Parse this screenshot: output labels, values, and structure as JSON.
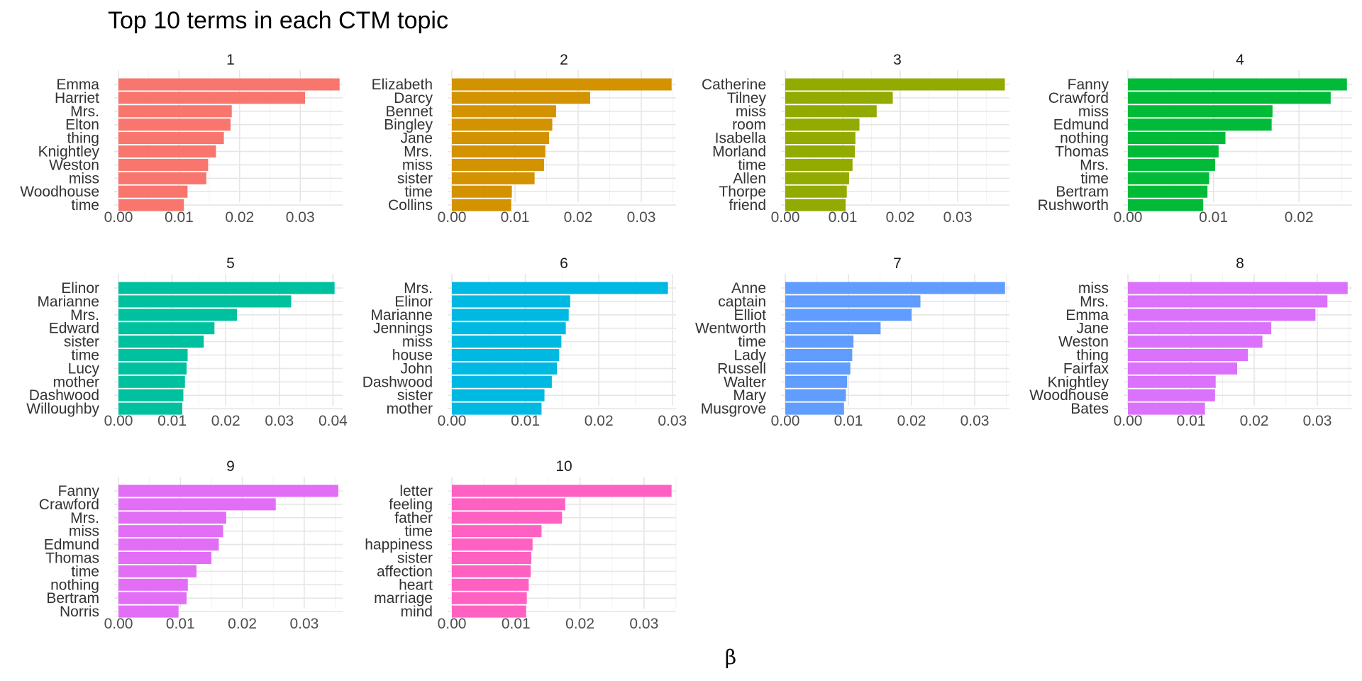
{
  "chart_data": {
    "type": "bar",
    "orientation": "horizontal",
    "title": "Top 10 terms in each CTM topic",
    "xlabel": "β",
    "ylabel": "",
    "grid": true,
    "legend": "none",
    "facets": [
      {
        "name": "1",
        "color": "#F8766D",
        "xlim": [
          0,
          0.037
        ],
        "ticks": [
          "0.00",
          "0.01",
          "0.02",
          "0.03"
        ],
        "terms": [
          "Emma",
          "Harriet",
          "Mrs.",
          "Elton",
          "thing",
          "Knightley",
          "Weston",
          "miss",
          "Woodhouse",
          "time"
        ],
        "values": [
          0.0365,
          0.0308,
          0.0187,
          0.0185,
          0.0174,
          0.0161,
          0.0148,
          0.0145,
          0.0114,
          0.0108
        ]
      },
      {
        "name": "2",
        "color": "#D39200",
        "xlim": [
          0,
          0.0355
        ],
        "ticks": [
          "0.00",
          "0.01",
          "0.02",
          "0.03"
        ],
        "terms": [
          "Elizabeth",
          "Darcy",
          "Bennet",
          "Bingley",
          "Jane",
          "Mrs.",
          "miss",
          "sister",
          "time",
          "Collins"
        ],
        "values": [
          0.0348,
          0.0219,
          0.0165,
          0.0159,
          0.0154,
          0.0148,
          0.0146,
          0.0131,
          0.0095,
          0.0094
        ]
      },
      {
        "name": "3",
        "color": "#93AA00",
        "xlim": [
          0,
          0.039
        ],
        "ticks": [
          "0.00",
          "0.01",
          "0.02",
          "0.03"
        ],
        "terms": [
          "Catherine",
          "Tilney",
          "miss",
          "room",
          "Isabella",
          "Morland",
          "time",
          "Allen",
          "Thorpe",
          "friend"
        ],
        "values": [
          0.0382,
          0.0187,
          0.0159,
          0.0129,
          0.0122,
          0.0121,
          0.0117,
          0.0111,
          0.0107,
          0.0105
        ]
      },
      {
        "name": "4",
        "color": "#00BA38",
        "xlim": [
          0,
          0.0262
        ],
        "ticks": [
          "0.00",
          "0.01",
          "0.02"
        ],
        "terms": [
          "Fanny",
          "Crawford",
          "miss",
          "Edmund",
          "nothing",
          "Thomas",
          "Mrs.",
          "time",
          "Bertram",
          "Rushworth"
        ],
        "values": [
          0.0256,
          0.0237,
          0.0169,
          0.0168,
          0.0114,
          0.0106,
          0.0102,
          0.0095,
          0.0093,
          0.0088
        ]
      },
      {
        "name": "5",
        "color": "#00C19F",
        "xlim": [
          0,
          0.0418
        ],
        "ticks": [
          "0.00",
          "0.01",
          "0.02",
          "0.03",
          "0.04"
        ],
        "terms": [
          "Elinor",
          "Marianne",
          "Mrs.",
          "Edward",
          "sister",
          "time",
          "Lucy",
          "mother",
          "Dashwood",
          "Willoughby"
        ],
        "values": [
          0.0403,
          0.0322,
          0.0221,
          0.0179,
          0.0159,
          0.0129,
          0.0127,
          0.0124,
          0.0121,
          0.0119
        ]
      },
      {
        "name": "6",
        "color": "#00B9E3",
        "xlim": [
          0,
          0.0305
        ],
        "ticks": [
          "0.00",
          "0.01",
          "0.02",
          "0.03"
        ],
        "terms": [
          "Mrs.",
          "Elinor",
          "Marianne",
          "Jennings",
          "miss",
          "house",
          "John",
          "Dashwood",
          "sister",
          "mother"
        ],
        "values": [
          0.0294,
          0.0161,
          0.0159,
          0.0155,
          0.0149,
          0.0146,
          0.0143,
          0.0136,
          0.0126,
          0.0122
        ]
      },
      {
        "name": "7",
        "color": "#619CFF",
        "xlim": [
          0,
          0.0355
        ],
        "ticks": [
          "0.00",
          "0.01",
          "0.02",
          "0.03"
        ],
        "terms": [
          "Anne",
          "captain",
          "Elliot",
          "Wentworth",
          "time",
          "Lady",
          "Russell",
          "Walter",
          "Mary",
          "Musgrove"
        ],
        "values": [
          0.0348,
          0.0214,
          0.02,
          0.0151,
          0.0108,
          0.0106,
          0.0103,
          0.0098,
          0.0096,
          0.0093
        ]
      },
      {
        "name": "8",
        "color": "#DB72FB",
        "xlim": [
          0,
          0.0355
        ],
        "ticks": [
          "0.00",
          "0.01",
          "0.02",
          "0.03"
        ],
        "terms": [
          "miss",
          "Mrs.",
          "Emma",
          "Jane",
          "Weston",
          "thing",
          "Fairfax",
          "Knightley",
          "Woodhouse",
          "Bates"
        ],
        "values": [
          0.0348,
          0.0316,
          0.0297,
          0.0227,
          0.0213,
          0.019,
          0.0173,
          0.0139,
          0.0138,
          0.0122
        ]
      },
      {
        "name": "9",
        "color": "#E16EF5",
        "xlim": [
          0,
          0.0362
        ],
        "ticks": [
          "0.00",
          "0.01",
          "0.02",
          "0.03"
        ],
        "terms": [
          "Fanny",
          "Crawford",
          "Mrs.",
          "miss",
          "Edmund",
          "Thomas",
          "time",
          "nothing",
          "Bertram",
          "Norris"
        ],
        "values": [
          0.0355,
          0.0254,
          0.0174,
          0.0169,
          0.0162,
          0.015,
          0.0126,
          0.0112,
          0.011,
          0.0097
        ]
      },
      {
        "name": "10",
        "color": "#FF61C3",
        "xlim": [
          0,
          0.035
        ],
        "ticks": [
          "0.00",
          "0.01",
          "0.02",
          "0.03"
        ],
        "terms": [
          "letter",
          "feeling",
          "father",
          "time",
          "happiness",
          "sister",
          "affection",
          "heart",
          "marriage",
          "mind"
        ],
        "values": [
          0.0343,
          0.0177,
          0.0172,
          0.014,
          0.0126,
          0.0124,
          0.0123,
          0.012,
          0.0117,
          0.0116
        ]
      }
    ]
  }
}
